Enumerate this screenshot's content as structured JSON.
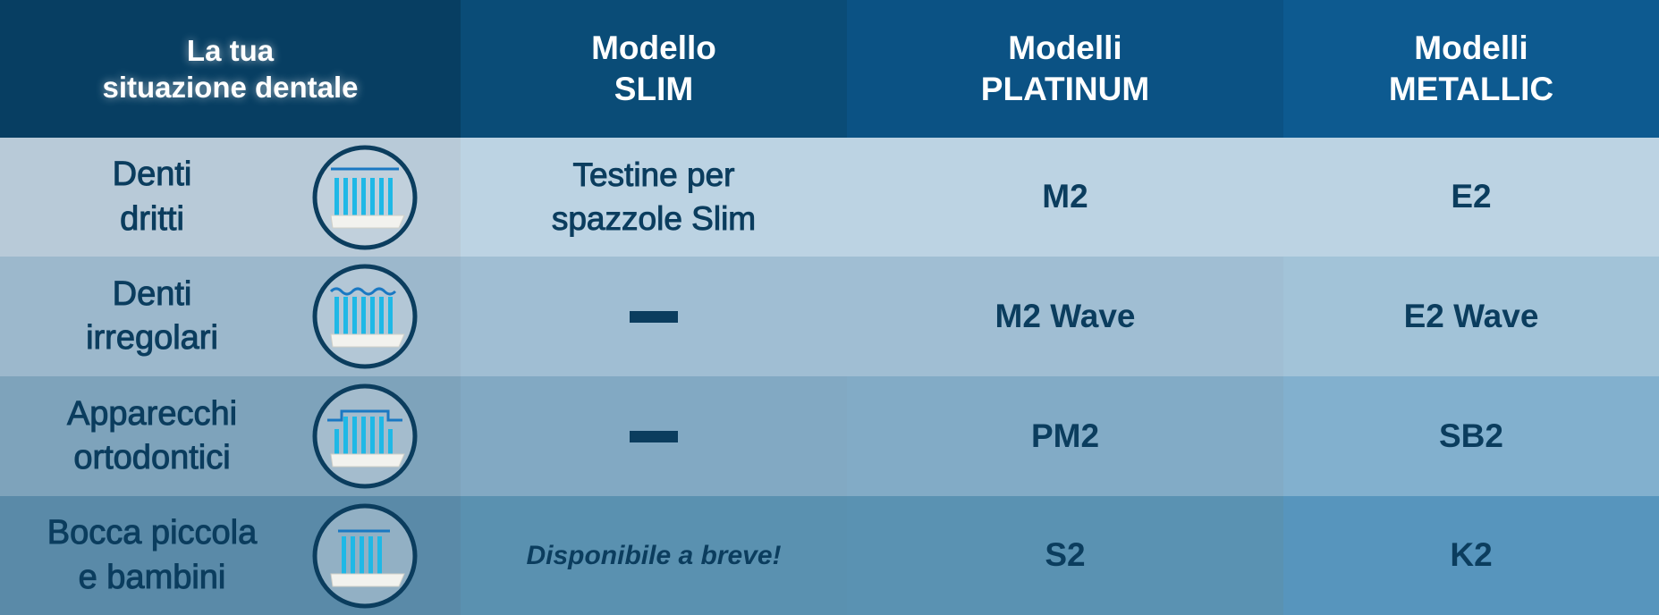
{
  "headers": [
    "La tua\nsituazione dentale",
    "Modello\nSLIM",
    "Modelli\nPLATINUM",
    "Modelli\nMETALLIC"
  ],
  "rows": [
    {
      "situation": "Denti\ndritti",
      "icon": "brush-straight-icon",
      "slim": "Testine per\nspazzole Slim",
      "platinum": "M2",
      "metallic": "E2"
    },
    {
      "situation": "Denti\nirregolari",
      "icon": "brush-wave-icon",
      "slim": "—",
      "platinum": "M2 Wave",
      "metallic": "E2 Wave"
    },
    {
      "situation": "Apparecchi\nortodontici",
      "icon": "brush-orthodontic-icon",
      "slim": "—",
      "platinum": "PM2",
      "metallic": "SB2"
    },
    {
      "situation": "Bocca piccola\ne bambini",
      "icon": "brush-small-icon",
      "slim": "Disponibile a breve!",
      "platinum": "S2",
      "metallic": "K2"
    }
  ],
  "colors": {
    "text": "#0b3d5e",
    "bristle": "#1fb8e6",
    "row_bg": [
      [
        "#b8cad8",
        "#bcd3e3",
        "#bcd3e3",
        "#bcd3e3"
      ],
      [
        "#9cb8cc",
        "#a0bed3",
        "#a0bed3",
        "#a2c3d8"
      ],
      [
        "#7ea3bb",
        "#82a9c3",
        "#82abc6",
        "#82b0ce"
      ],
      [
        "#5a8aa8",
        "#5a91b0",
        "#5a92b2",
        "#5795bd"
      ]
    ]
  }
}
